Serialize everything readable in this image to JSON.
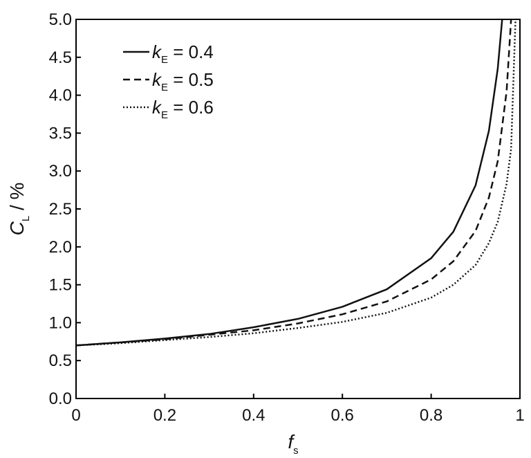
{
  "chart_data": {
    "type": "line",
    "xlabel": {
      "symbol": "f",
      "subscript": "s"
    },
    "ylabel": {
      "symbol": "C",
      "subscript": "L",
      "unit": " / %"
    },
    "xlim": [
      0,
      1
    ],
    "ylim": [
      0,
      5
    ],
    "x_ticks": [
      "0",
      "0.2",
      "0.4",
      "0.6",
      "0.8",
      "1"
    ],
    "x_tick_values": [
      0,
      0.2,
      0.4,
      0.6,
      0.8,
      1
    ],
    "y_ticks": [
      "0.0",
      "0.5",
      "1.0",
      "1.5",
      "2.0",
      "2.5",
      "3.0",
      "3.5",
      "4.0",
      "4.5",
      "5.0"
    ],
    "y_tick_values": [
      0,
      0.5,
      1,
      1.5,
      2,
      2.5,
      3,
      3.5,
      4,
      4.5,
      5
    ],
    "grid": false,
    "legend_position": "top-left",
    "series": [
      {
        "legend_symbol": "k",
        "legend_subscript": "E",
        "legend_value": " = 0.4",
        "line_style": "solid",
        "x": [
          0,
          0.1,
          0.2,
          0.3,
          0.4,
          0.5,
          0.6,
          0.7,
          0.8,
          0.85,
          0.9,
          0.93,
          0.95,
          0.96
        ],
        "y": [
          0.7,
          0.74,
          0.79,
          0.85,
          0.94,
          1.05,
          1.21,
          1.44,
          1.85,
          2.2,
          2.81,
          3.53,
          4.35,
          5.0
        ]
      },
      {
        "legend_symbol": "k",
        "legend_subscript": "E",
        "legend_value": " = 0.5",
        "line_style": "dashed",
        "x": [
          0,
          0.1,
          0.2,
          0.3,
          0.4,
          0.5,
          0.6,
          0.7,
          0.8,
          0.85,
          0.9,
          0.93,
          0.95,
          0.97,
          0.98
        ],
        "y": [
          0.7,
          0.74,
          0.78,
          0.84,
          0.9,
          0.99,
          1.11,
          1.28,
          1.57,
          1.81,
          2.21,
          2.65,
          3.13,
          4.05,
          5.0
        ]
      },
      {
        "legend_symbol": "k",
        "legend_subscript": "E",
        "legend_value": " = 0.6",
        "line_style": "dotted",
        "x": [
          0,
          0.1,
          0.2,
          0.3,
          0.4,
          0.5,
          0.6,
          0.7,
          0.8,
          0.85,
          0.9,
          0.93,
          0.95,
          0.97,
          0.98,
          0.99
        ],
        "y": [
          0.7,
          0.73,
          0.77,
          0.81,
          0.86,
          0.93,
          1.01,
          1.13,
          1.33,
          1.5,
          1.76,
          2.05,
          2.33,
          2.83,
          3.29,
          5.0
        ]
      }
    ],
    "colors": {
      "line": "#111111",
      "axis": "#000000",
      "background": "#ffffff"
    }
  }
}
